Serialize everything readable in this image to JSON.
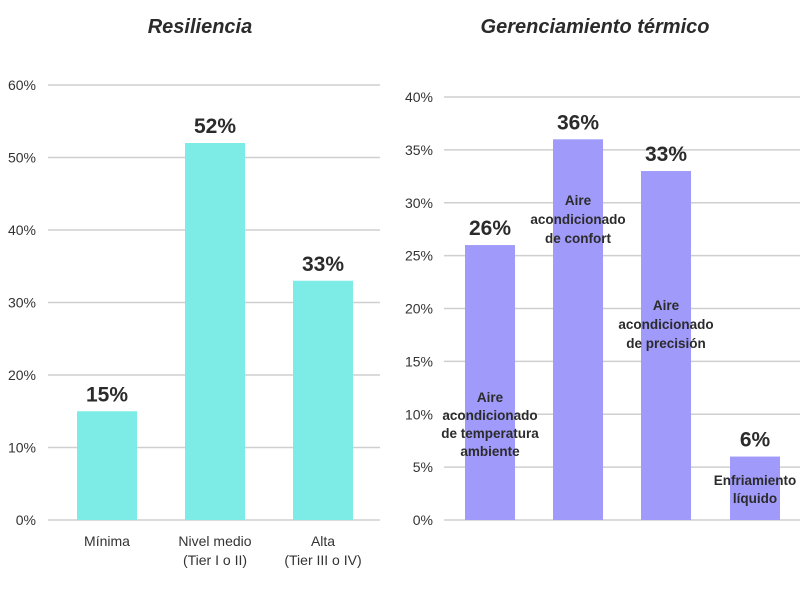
{
  "chart_data": [
    {
      "type": "bar",
      "title": "Resiliencia",
      "categories": [
        "Mínima",
        "Nivel medio\n(Tier I o II)",
        "Alta\n(Tier III o IV)"
      ],
      "values": [
        15,
        52,
        33
      ],
      "value_labels": [
        "15%",
        "52%",
        "33%"
      ],
      "ylim": [
        0,
        60
      ],
      "yticks": [
        0,
        10,
        20,
        30,
        40,
        50,
        60
      ],
      "ytick_labels": [
        "0%",
        "10%",
        "20%",
        "30%",
        "40%",
        "50%",
        "60%"
      ],
      "color": "#7eece6",
      "grid": true
    },
    {
      "type": "bar",
      "title": "Gerenciamiento térmico",
      "categories": [
        "Aire\nacondicionado\nde temperatura\nambiente",
        "Aire\nacondicionado\nde confort",
        "Aire\nacondicionado\nde precisión",
        "Enfriamiento\nlíquido"
      ],
      "values": [
        26,
        36,
        33,
        6
      ],
      "value_labels": [
        "26%",
        "36%",
        "33%",
        "6%"
      ],
      "ylim": [
        0,
        40
      ],
      "yticks": [
        0,
        5,
        10,
        15,
        20,
        25,
        30,
        35,
        40
      ],
      "ytick_labels": [
        "0%",
        "5%",
        "10%",
        "15%",
        "20%",
        "25%",
        "30%",
        "35%",
        "40%"
      ],
      "color": "#a09bfb",
      "grid": true
    }
  ]
}
